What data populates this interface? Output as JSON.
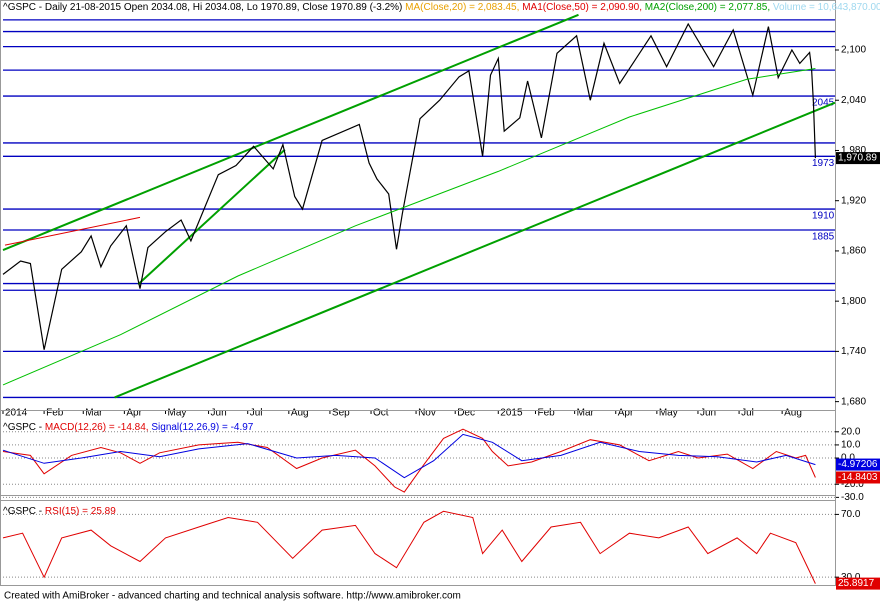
{
  "chart_data": [
    {
      "type": "line",
      "header": [
        {
          "text": "^GSPC - Daily 21-08-2015 Open 2034.08, Hi 2034.08, Lo 1970.89, Close 1970.89 (-3.2%) ",
          "color": "#000000"
        },
        {
          "text": "MA(Close,20) = 2,083.45, ",
          "color": "#e8a000"
        },
        {
          "text": "MA1(Close,50) = 2,090.90, ",
          "color": "#e00000"
        },
        {
          "text": "MA2(Close,200) = 2,077.85, ",
          "color": "#00a000"
        },
        {
          "text": "Volume = 10,643,870.00",
          "color": "#9fd8ef"
        }
      ],
      "xlim": [
        0,
        425
      ],
      "xticks": [
        {
          "value": 0,
          "label": "2014"
        },
        {
          "value": 21,
          "label": "Feb"
        },
        {
          "value": 41,
          "label": "Mar"
        },
        {
          "value": 62,
          "label": "Apr"
        },
        {
          "value": 83,
          "label": "May"
        },
        {
          "value": 105,
          "label": "Jun"
        },
        {
          "value": 125,
          "label": "Jul"
        },
        {
          "value": 146,
          "label": "Aug"
        },
        {
          "value": 167,
          "label": "Sep"
        },
        {
          "value": 188,
          "label": "Oct"
        },
        {
          "value": 211,
          "label": "Nov"
        },
        {
          "value": 231,
          "label": "Dec"
        },
        {
          "value": 253,
          "label": "2015"
        },
        {
          "value": 272,
          "label": "Feb"
        },
        {
          "value": 292,
          "label": "Mar"
        },
        {
          "value": 313,
          "label": "Apr"
        },
        {
          "value": 334,
          "label": "May"
        },
        {
          "value": 355,
          "label": "Jun"
        },
        {
          "value": 376,
          "label": "Jul"
        },
        {
          "value": 398,
          "label": "Aug"
        }
      ],
      "ylim": [
        1670,
        2143
      ],
      "yticks": [
        {
          "value": 1680,
          "label": "1,680"
        },
        {
          "value": 1740,
          "label": "1,740"
        },
        {
          "value": 1800,
          "label": "1,800"
        },
        {
          "value": 1860,
          "label": "1,860"
        },
        {
          "value": 1920,
          "label": "1,920"
        },
        {
          "value": 1980,
          "label": "1,980"
        },
        {
          "value": 2040,
          "label": "2,040"
        },
        {
          "value": 2100,
          "label": "2,100"
        }
      ],
      "grid": false,
      "series": [
        {
          "color": "#000000",
          "x": [
            0,
            9,
            14,
            21,
            30,
            40,
            45,
            50,
            55,
            63,
            70,
            74,
            83,
            91,
            96,
            110,
            119,
            128,
            138,
            143,
            149,
            153,
            163,
            182,
            187,
            191,
            197,
            201,
            204,
            213,
            223,
            233,
            238,
            245,
            249,
            253,
            256,
            264,
            268,
            275,
            283,
            293,
            300,
            307,
            315,
            331,
            339,
            350,
            363,
            373,
            383,
            391,
            396,
            403,
            407,
            412,
            413,
            414,
            415
          ],
          "values": [
            1832,
            1848,
            1845,
            1742,
            1838,
            1859,
            1878,
            1841,
            1866,
            1890,
            1815,
            1864,
            1883,
            1897,
            1872,
            1951,
            1962,
            1985,
            1958,
            1987,
            1925,
            1910,
            1992,
            2011,
            1965,
            1946,
            1928,
            1862,
            1905,
            2018,
            2040,
            2068,
            2075,
            1973,
            2070,
            2090,
            2003,
            2019,
            2063,
            1995,
            2096,
            2117,
            2040,
            2108,
            2060,
            2117,
            2080,
            2131,
            2080,
            2124,
            2046,
            2128,
            2067,
            2100,
            2084,
            2097,
            2079,
            2035,
            1970.89
          ],
          "last_label": {
            "value": 1970.89,
            "label": "1,970.89"
          }
        },
        {
          "color": "#00c000",
          "x": [
            0,
            60,
            120,
            180,
            253,
            320,
            380,
            415
          ],
          "values": [
            1700,
            1760,
            1830,
            1890,
            1955,
            2020,
            2065,
            2077.85
          ]
        }
      ],
      "trendlines": [
        {
          "color": "#00a000",
          "x": [
            0,
            294
          ],
          "values": [
            1861,
            2142
          ]
        },
        {
          "color": "#00a000",
          "x": [
            57,
            425
          ],
          "values": [
            1685,
            2037
          ]
        },
        {
          "color": "#00a000",
          "x": [
            69,
            144
          ],
          "values": [
            1820,
            1981
          ]
        },
        {
          "color": "#e00000",
          "x": [
            1,
            70
          ],
          "values": [
            1867,
            1900
          ]
        }
      ],
      "levels": [
        2136,
        2122,
        2104,
        2076,
        2045,
        1989,
        1973,
        1910,
        1885,
        1821,
        1813,
        1740,
        1685
      ],
      "level_color": "#0000c0",
      "level_labels": [
        2045,
        1973,
        1910,
        1885
      ]
    },
    {
      "type": "line",
      "header": [
        {
          "text": "^GSPC - ",
          "color": "#000000"
        },
        {
          "text": "MACD(12,26) = -14.84, ",
          "color": "#e00000"
        },
        {
          "text": "Signal(12,26,9) = -4.97",
          "color": "#0000e0"
        }
      ],
      "ylim": [
        -32,
        29
      ],
      "yticks": [
        {
          "value": 20,
          "label": "20.0"
        },
        {
          "value": 10,
          "label": "10.0"
        },
        {
          "value": 0,
          "label": "0.0"
        },
        {
          "value": -20,
          "label": "-20.0"
        },
        {
          "value": -30,
          "label": "-30.0"
        }
      ],
      "grid": true,
      "series": [
        {
          "color": "#e00000",
          "x": [
            0,
            14,
            21,
            35,
            50,
            60,
            70,
            80,
            100,
            120,
            135,
            150,
            163,
            180,
            190,
            200,
            205,
            215,
            225,
            235,
            245,
            250,
            258,
            270,
            285,
            300,
            315,
            330,
            345,
            355,
            370,
            383,
            395,
            405,
            410,
            415
          ],
          "values": [
            5,
            2,
            -12,
            2,
            8,
            4,
            -4,
            4,
            10,
            12,
            8,
            -8,
            0,
            6,
            -6,
            -22,
            -26,
            -5,
            15,
            22,
            15,
            5,
            -6,
            -3,
            5,
            14,
            10,
            -2,
            5,
            0,
            3,
            -8,
            5,
            0,
            2,
            -14.84
          ],
          "last_label": -14.8403
        },
        {
          "color": "#0000e0",
          "x": [
            0,
            21,
            40,
            60,
            80,
            100,
            125,
            150,
            170,
            190,
            205,
            220,
            235,
            250,
            265,
            285,
            305,
            325,
            345,
            365,
            385,
            400,
            415
          ],
          "values": [
            6,
            -4,
            0,
            5,
            1,
            7,
            11,
            0,
            2,
            0,
            -15,
            -2,
            18,
            12,
            -2,
            2,
            12,
            5,
            2,
            1,
            -3,
            2,
            -4.97
          ],
          "last_label": -4.97206
        }
      ]
    },
    {
      "type": "line",
      "header": [
        {
          "text": "^GSPC - ",
          "color": "#000000"
        },
        {
          "text": "RSI(15) = 25.89",
          "color": "#e00000"
        }
      ],
      "ylim": [
        25,
        76
      ],
      "yticks": [
        {
          "value": 70,
          "label": "70.0"
        },
        {
          "value": 30,
          "label": "30.0"
        }
      ],
      "grid": true,
      "series": [
        {
          "color": "#e00000",
          "x": [
            0,
            10,
            21,
            30,
            45,
            55,
            70,
            83,
            100,
            115,
            130,
            148,
            163,
            180,
            190,
            201,
            215,
            225,
            240,
            245,
            255,
            265,
            280,
            295,
            305,
            320,
            335,
            350,
            360,
            375,
            385,
            392,
            405,
            415
          ],
          "values": [
            55,
            58,
            30,
            55,
            60,
            50,
            40,
            55,
            62,
            68,
            65,
            42,
            60,
            63,
            45,
            36,
            65,
            72,
            68,
            45,
            60,
            40,
            62,
            65,
            45,
            58,
            55,
            62,
            45,
            55,
            45,
            58,
            52,
            25.89
          ],
          "last_label": 25.8917
        }
      ]
    }
  ],
  "footer": "Created with AmiBroker - advanced charting and technical analysis software. http://www.amibroker.com"
}
